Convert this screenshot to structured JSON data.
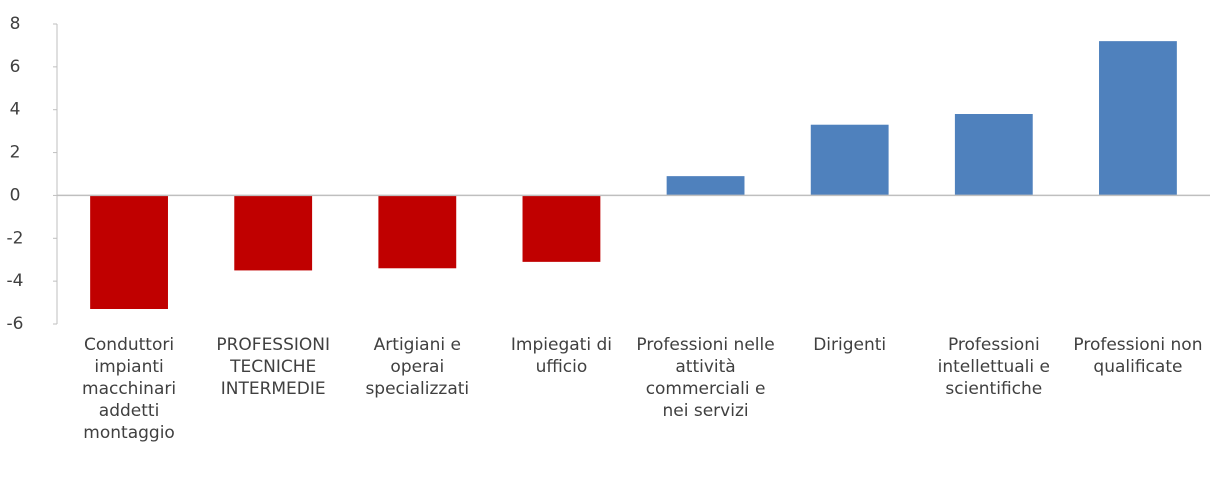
{
  "chart_data": {
    "type": "bar",
    "categories": [
      "Conduttori impianti macchinari addetti montaggio",
      "PROFESSIONI TECNICHE INTERMEDIE",
      "Artigiani e operai specializzati",
      "Impiegati di ufficio",
      "Professioni nelle attività commerciali e nei servizi",
      "Dirigenti",
      "Professioni intellettuali e scientifiche",
      "Professioni non qualificate"
    ],
    "values": [
      -5.3,
      -3.5,
      -3.4,
      -3.1,
      0.9,
      3.3,
      3.8,
      7.2
    ],
    "colors": [
      "#c00000",
      "#c00000",
      "#c00000",
      "#c00000",
      "#4f81bd",
      "#4f81bd",
      "#4f81bd",
      "#4f81bd"
    ],
    "ylim": [
      -6,
      8
    ],
    "yticks": [
      -6,
      -4,
      -2,
      0,
      2,
      4,
      6,
      8
    ],
    "grid": false
  }
}
